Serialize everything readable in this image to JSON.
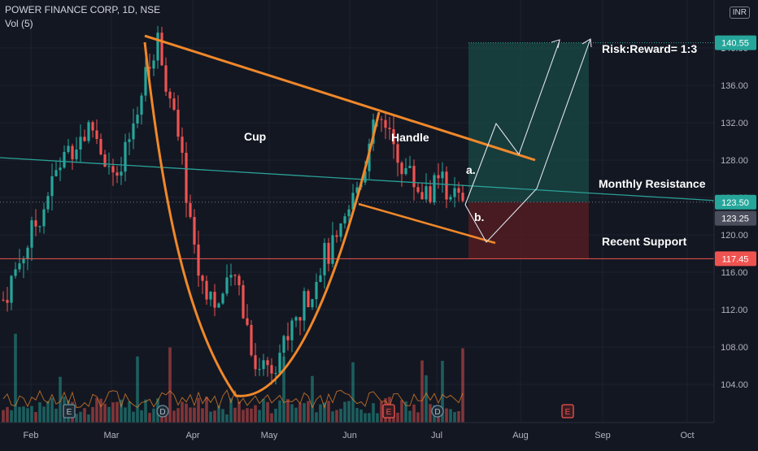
{
  "header": {
    "symbol": "POWER FINANCE CORP, 1D, NSE",
    "volume_label": "Vol (5)",
    "currency": "INR"
  },
  "colors": {
    "background": "#131722",
    "up": "#26a69a",
    "down": "#ef5350",
    "pattern": "#f0882a",
    "resistance": "#2aa198",
    "support": "#ef5350",
    "grid": "#1e222d"
  },
  "annotations": {
    "cup": "Cup",
    "handle": "Handle",
    "risk_reward": "Risk:Reward= 1:3",
    "monthly_resistance": "Monthly Resistance",
    "recent_support": "Recent Support",
    "path_a": "a.",
    "path_b": "b."
  },
  "event_markers": [
    "E",
    "D",
    "D",
    "E",
    "E",
    "D",
    "E"
  ],
  "price_badges": [
    {
      "value": "140.55",
      "color": "#26a69a"
    },
    {
      "value": "123.50",
      "color": "#26a69a"
    },
    {
      "value": "123.25",
      "color": "#4a4e5c"
    },
    {
      "value": "117.45",
      "color": "#ef5350"
    }
  ],
  "chart_data": {
    "type": "candlestick",
    "y_axis": {
      "ticks": [
        104,
        108,
        112,
        116,
        120,
        124,
        128,
        132,
        136,
        140
      ],
      "range": [
        100.5,
        144
      ]
    },
    "x_axis": {
      "labels": [
        "Feb",
        "Mar",
        "Apr",
        "May",
        "Jun",
        "Jul",
        "Aug",
        "Sep",
        "Oct"
      ]
    },
    "levels": {
      "monthly_resistance": 123.5,
      "recent_support": 117.45,
      "target": 140.55,
      "last_price": 123.25
    },
    "cup_handle_pattern": {
      "cup_left_rim": [
        "Mar",
        141
      ],
      "cup_bottom": [
        "Apr",
        102.8
      ],
      "cup_right_rim": [
        "Jun",
        133
      ],
      "resistance_line": [
        [
          "Mar",
          141.3
        ],
        [
          "Jul",
          128.2
        ]
      ],
      "handle_lower_line": [
        [
          "Jun",
          123.4
        ],
        [
          "Jul",
          119.2
        ]
      ]
    },
    "trade_zone": {
      "entry": 123.5,
      "stop": 117.45,
      "target": 140.55,
      "risk_reward": "1:3"
    },
    "candles_per_month_approx": 20,
    "price_path": [
      [
        "Jan",
        119.5
      ],
      [
        "Jan",
        113.0
      ],
      [
        "Feb",
        122.0
      ],
      [
        "Feb",
        129.0
      ],
      [
        "Feb",
        131.5
      ],
      [
        "Mar",
        125.0
      ],
      [
        "Mar",
        134.0
      ],
      [
        "Mar",
        141.0
      ],
      [
        "Mar",
        130.0
      ],
      [
        "Apr",
        116.0
      ],
      [
        "Apr",
        112.5
      ],
      [
        "Apr",
        115.5
      ],
      [
        "Apr",
        106.0
      ],
      [
        "May",
        106.5
      ],
      [
        "May",
        109.5
      ],
      [
        "May",
        113.0
      ],
      [
        "May",
        117.5
      ],
      [
        "May",
        119.0
      ],
      [
        "Jun",
        125.0
      ],
      [
        "Jun",
        132.5
      ],
      [
        "Jun",
        128.0
      ],
      [
        "Jun",
        124.5
      ],
      [
        "Jul",
        125.5
      ],
      [
        "Jul",
        121.5
      ],
      [
        "Jul",
        123.25
      ]
    ]
  }
}
